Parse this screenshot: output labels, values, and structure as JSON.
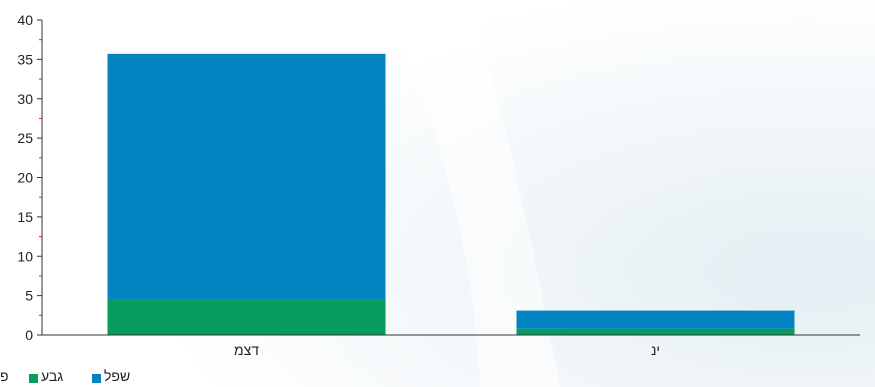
{
  "chart_data": {
    "type": "bar",
    "stacked": true,
    "categories": [
      "דצמ",
      "ינ"
    ],
    "series": [
      {
        "name": "גבע",
        "color": "#069c5e",
        "values": [
          4.5,
          0.8
        ]
      },
      {
        "name": "שפל",
        "color": "#0483c2",
        "values": [
          31.2,
          2.3
        ]
      }
    ],
    "ylim": [
      0,
      40
    ],
    "yticks": [
      0,
      5,
      10,
      15,
      20,
      25,
      30,
      35,
      40
    ],
    "legend_extra_label": "פ",
    "grid": false,
    "legend_position": "bottom-left",
    "axis_color": "#333333",
    "minor_tick_color": "#e02020"
  }
}
